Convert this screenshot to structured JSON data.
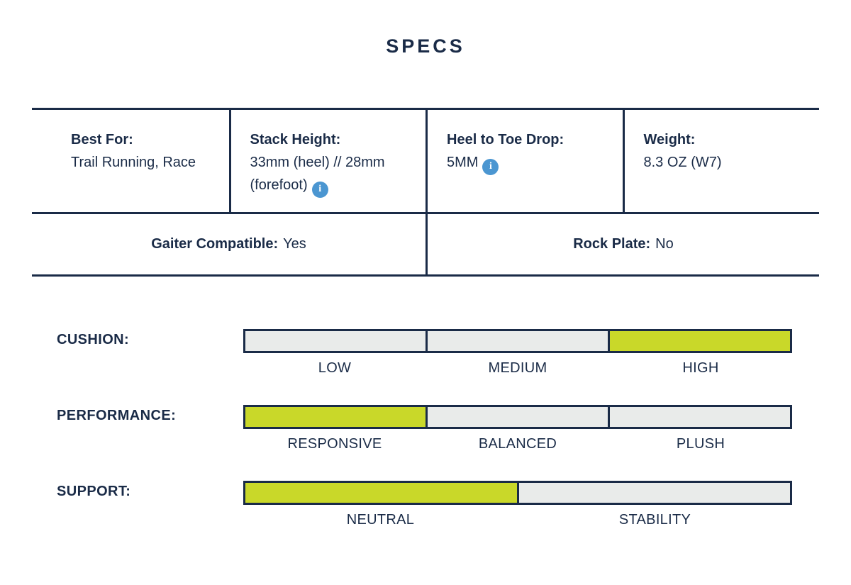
{
  "title": "SPECS",
  "colors": {
    "navy": "#1a2b47",
    "segment_gray": "#e9ebea",
    "highlight_green": "#c9d829",
    "info_blue": "#4b96d1",
    "background": "#ffffff"
  },
  "icons": {
    "info_glyph": "i"
  },
  "table": {
    "cells": [
      {
        "label": "Best For:",
        "value": "Trail Running, Race",
        "has_info": false
      },
      {
        "label": "Stack Height:",
        "value": "33mm (heel) // 28mm (forefoot)",
        "has_info": true
      },
      {
        "label": "Heel to Toe Drop:",
        "value": "5MM",
        "has_info": true
      },
      {
        "label": "Weight:",
        "value": "8.3 OZ (W7)",
        "has_info": false
      }
    ],
    "footer_cells": [
      {
        "label": "Gaiter Compatible:",
        "value": "Yes"
      },
      {
        "label": "Rock Plate:",
        "value": "No"
      }
    ]
  },
  "sliders": [
    {
      "label": "CUSHION:",
      "options": [
        "LOW",
        "MEDIUM",
        "HIGH"
      ],
      "selected": "HIGH",
      "selected_index": 2
    },
    {
      "label": "PERFORMANCE:",
      "options": [
        "RESPONSIVE",
        "BALANCED",
        "PLUSH"
      ],
      "selected": "RESPONSIVE",
      "selected_index": 0
    },
    {
      "label": "SUPPORT:",
      "options": [
        "NEUTRAL",
        "STABILITY"
      ],
      "selected": "NEUTRAL",
      "selected_index": 0
    }
  ]
}
